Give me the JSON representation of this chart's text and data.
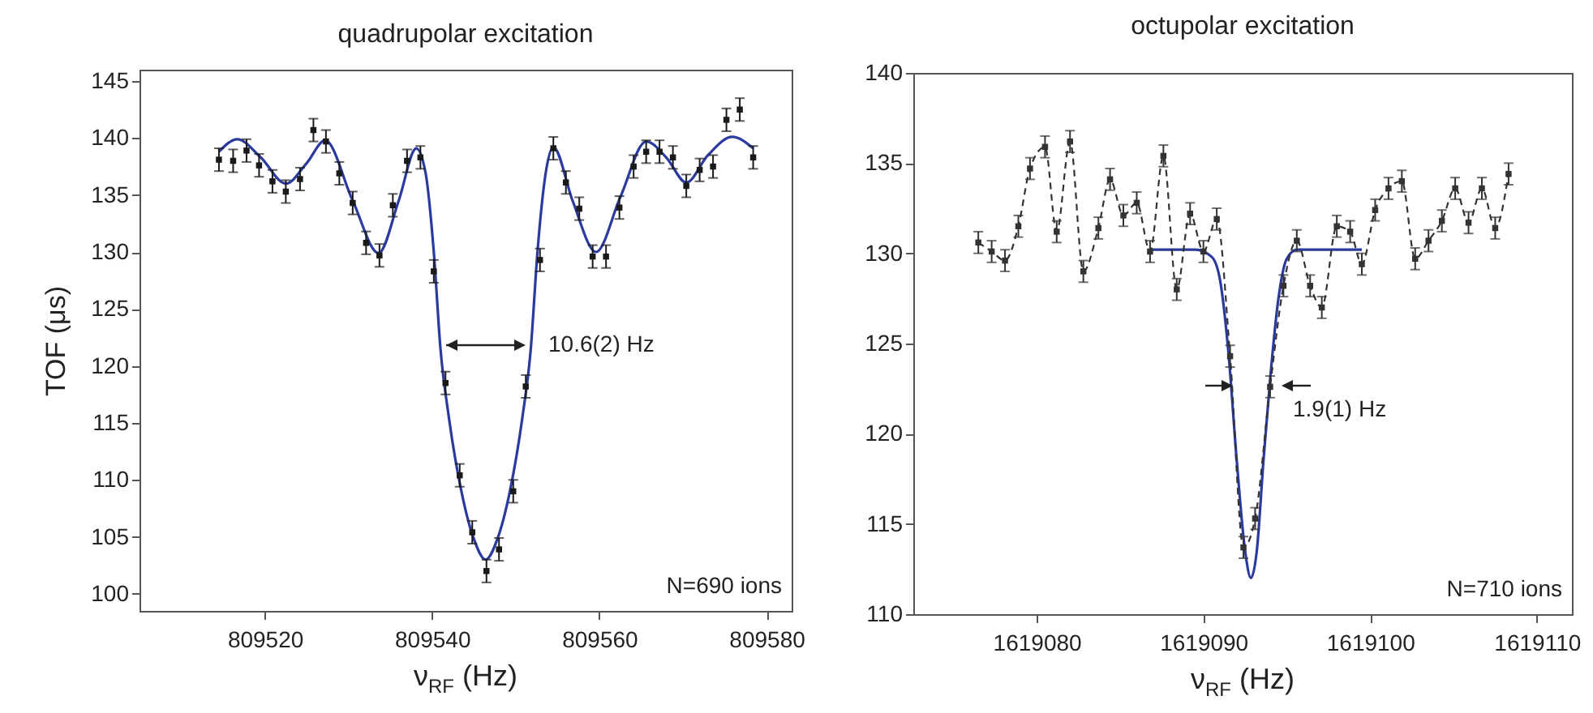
{
  "chart_data": [
    {
      "type": "scatter",
      "title": "quadrupolar excitation",
      "xlabel": "ν$_{RF}$ (Hz)",
      "ylabel": "TOF (μs)",
      "xlim": [
        809505,
        809583
      ],
      "ylim": [
        98.5,
        146
      ],
      "xticks": [
        809520,
        809540,
        809560,
        809580
      ],
      "yticks": [
        100,
        105,
        110,
        115,
        120,
        125,
        130,
        135,
        140,
        145
      ],
      "grid": false,
      "series": [
        {
          "color": "#1a1a1a",
          "marker": "square",
          "x": [
            809514.5,
            809516.2,
            809517.8,
            809519.3,
            809520.9,
            809522.5,
            809524.2,
            809525.8,
            809527.3,
            809528.9,
            809530.5,
            809532.1,
            809533.7,
            809535.3,
            809537.0,
            809538.6,
            809540.2,
            809541.6,
            809543.3,
            809544.8,
            809546.5,
            809548.0,
            809549.7,
            809551.2,
            809552.9,
            809554.5,
            809556.0,
            809557.6,
            809559.2,
            809560.8,
            809562.4,
            809564.1,
            809565.6,
            809567.2,
            809568.8,
            809570.4,
            809572.0,
            809573.6,
            809575.2,
            809576.8,
            809578.4
          ],
          "values": [
            138.1,
            138.0,
            138.9,
            137.6,
            136.2,
            135.3,
            136.4,
            140.7,
            139.7,
            136.9,
            134.3,
            130.8,
            129.7,
            134.1,
            138.0,
            138.3,
            128.3,
            118.5,
            110.4,
            105.4,
            102.0,
            103.9,
            109.0,
            118.2,
            129.3,
            139.1,
            136.1,
            133.8,
            129.6,
            129.6,
            133.9,
            137.5,
            138.8,
            138.8,
            138.3,
            135.8,
            137.2,
            137.5,
            141.6,
            142.5,
            138.3
          ],
          "errors": [
            1,
            1,
            1,
            1,
            1,
            1,
            1,
            1,
            1,
            1,
            1,
            1,
            1,
            1,
            1,
            1,
            1,
            1,
            1,
            1,
            1,
            1,
            1,
            1,
            1,
            1,
            1,
            1,
            1,
            1,
            1,
            1,
            1,
            1,
            1,
            1,
            1,
            1,
            1,
            1,
            1
          ]
        },
        {
          "type": "line",
          "color": "#2b3a9e",
          "line_style": "solid",
          "marker": "none",
          "x": [
            809514.5,
            809516.7,
            809519.5,
            809522.5,
            809525,
            809527.2,
            809530.5,
            809533.6,
            809536,
            809538.1,
            809539.2,
            809540.2,
            809541.0,
            809542,
            809543.5,
            809545,
            809546.4,
            809547.8,
            809549.3,
            809550.8,
            809551.8,
            809552.6,
            809553.6,
            809554.5,
            809556.8,
            809559.6,
            809562.5,
            809565.6,
            809568,
            809570.4,
            809573,
            809575.9,
            809578.4
          ],
          "values": [
            138.8,
            139.9,
            138.3,
            136.0,
            137.8,
            139.8,
            134.5,
            129.9,
            134.5,
            139.1,
            137,
            130,
            121.5,
            115.5,
            109,
            104.8,
            103.0,
            104.8,
            109,
            115.5,
            121.5,
            130,
            137,
            139.2,
            134.5,
            130.0,
            134.8,
            139.7,
            138.3,
            136.1,
            138.5,
            140.1,
            139.1
          ]
        }
      ],
      "annotations": [
        "10.6(2) Hz",
        "N=690 ions"
      ]
    },
    {
      "type": "line",
      "title": "octupolar excitation",
      "xlabel": "ν$_{RF}$ (Hz)",
      "xlim": [
        1619072.6,
        1619112.1
      ],
      "ylim": [
        110,
        140
      ],
      "xticks": [
        1619080,
        1619090,
        1619100,
        1619110
      ],
      "yticks": [
        110,
        115,
        120,
        125,
        130,
        135,
        140
      ],
      "grid": false,
      "series": [
        {
          "color": "#333333",
          "line_style": "dashed",
          "marker": "square",
          "x": [
            1619076.5,
            1619077.3,
            1619078.1,
            1619078.9,
            1619079.6,
            1619080.5,
            1619081.2,
            1619082.0,
            1619082.8,
            1619083.7,
            1619084.4,
            1619085.2,
            1619086.0,
            1619086.8,
            1619087.6,
            1619088.4,
            1619089.2,
            1619090.0,
            1619090.8,
            1619091.6,
            1619092.4,
            1619093.1,
            1619094.0,
            1619094.8,
            1619095.6,
            1619096.4,
            1619097.1,
            1619098.0,
            1619098.8,
            1619099.5,
            1619100.3,
            1619101.1,
            1619101.9,
            1619102.7,
            1619103.5,
            1619104.3,
            1619105.1,
            1619105.9,
            1619106.7,
            1619107.5,
            1619108.3
          ],
          "values": [
            130.6,
            130.1,
            129.6,
            131.5,
            134.7,
            135.9,
            131.2,
            136.2,
            129.0,
            131.4,
            134.1,
            132.1,
            132.8,
            130.1,
            135.4,
            128.0,
            132.2,
            130.1,
            131.9,
            124.3,
            113.7,
            115.3,
            122.6,
            128.2,
            130.7,
            128.2,
            127.0,
            131.5,
            131.2,
            129.4,
            132.4,
            133.6,
            134.0,
            129.7,
            130.7,
            131.8,
            133.6,
            131.7,
            133.6,
            131.4,
            134.4
          ],
          "errors": [
            0.6,
            0.6,
            0.6,
            0.6,
            0.6,
            0.6,
            0.6,
            0.6,
            0.6,
            0.6,
            0.6,
            0.6,
            0.6,
            0.6,
            0.6,
            0.6,
            0.6,
            0.6,
            0.6,
            0.6,
            0.6,
            0.6,
            0.6,
            0.6,
            0.6,
            0.6,
            0.6,
            0.6,
            0.6,
            0.6,
            0.6,
            0.6,
            0.6,
            0.6,
            0.6,
            0.6,
            0.6,
            0.6,
            0.6,
            0.6,
            0.6
          ]
        },
        {
          "type": "line",
          "color": "#2b3a9e",
          "line_style": "solid",
          "marker": "none",
          "x": [
            1619086.8,
            1619089.5,
            1619090.5,
            1619091.0,
            1619091.5,
            1619092.0,
            1619092.5,
            1619092.85,
            1619093.2,
            1619093.6,
            1619094.0,
            1619094.5,
            1619095.0,
            1619095.6,
            1619099.5
          ],
          "values": [
            130.2,
            130.2,
            129.8,
            128.5,
            124.5,
            118.5,
            113.5,
            112.0,
            113.5,
            118.5,
            123,
            127.5,
            129.7,
            130.2,
            130.2
          ]
        }
      ],
      "annotations": [
        "1.9(1) Hz",
        "N=710 ions"
      ]
    }
  ]
}
